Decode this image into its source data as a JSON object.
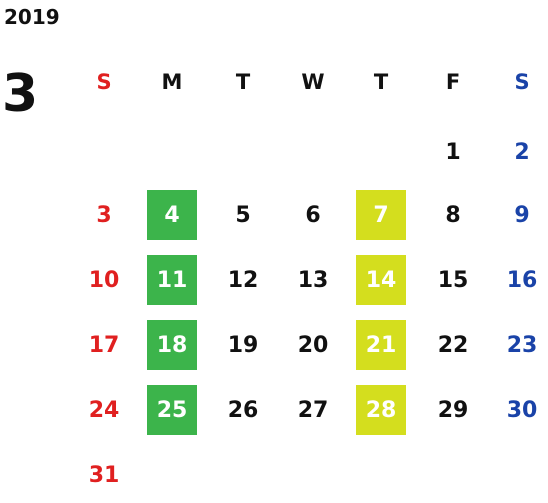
{
  "calendar": {
    "year": "2019",
    "month": "3",
    "weekdays": [
      "S",
      "M",
      "T",
      "W",
      "T",
      "F",
      "S"
    ],
    "weeks": [
      [
        "",
        "",
        "",
        "",
        "",
        "1",
        "2"
      ],
      [
        "3",
        "4",
        "5",
        "6",
        "7",
        "8",
        "9"
      ],
      [
        "10",
        "11",
        "12",
        "13",
        "14",
        "15",
        "16"
      ],
      [
        "17",
        "18",
        "19",
        "20",
        "21",
        "22",
        "23"
      ],
      [
        "24",
        "25",
        "26",
        "27",
        "28",
        "29",
        "30"
      ],
      [
        "31",
        "",
        "",
        "",
        "",
        "",
        ""
      ]
    ],
    "highlights": {
      "green": [
        "4",
        "11",
        "18",
        "25"
      ],
      "lime": [
        "7",
        "14",
        "21",
        "28"
      ]
    },
    "colors": {
      "sunday": "#e02020",
      "saturday": "#1a43a8",
      "weekday": "#111111",
      "highlight_green": "#3cb44b",
      "highlight_lime": "#d4de1e"
    }
  }
}
